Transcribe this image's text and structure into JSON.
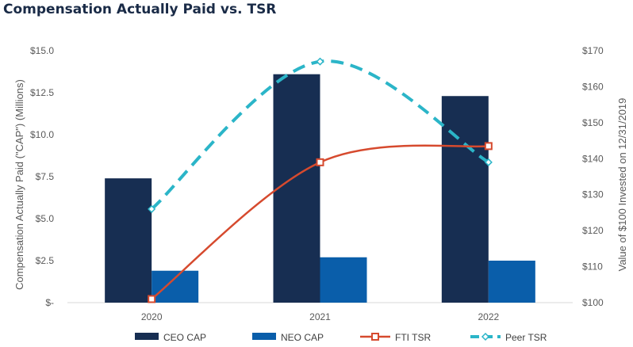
{
  "chart_data": {
    "type": "bar",
    "title": "Compensation Actually Paid vs. TSR",
    "categories": [
      "2020",
      "2021",
      "2022"
    ],
    "series": [
      {
        "name": "CEO CAP",
        "kind": "bar",
        "axis": "left",
        "color": "#172e52",
        "values": [
          7.4,
          13.6,
          12.3
        ]
      },
      {
        "name": "NEO CAP",
        "kind": "bar",
        "axis": "left",
        "color": "#0a5eaa",
        "values": [
          1.9,
          2.7,
          2.5
        ]
      },
      {
        "name": "FTI TSR",
        "kind": "line",
        "axis": "right",
        "color": "#d64a2e",
        "marker": "square",
        "values": [
          101,
          139,
          143.5
        ]
      },
      {
        "name": "Peer TSR",
        "kind": "line",
        "axis": "right",
        "color": "#2bb5c8",
        "marker": "diamond",
        "dashed": true,
        "values": [
          126,
          167,
          139
        ]
      }
    ],
    "y_left": {
      "label": "Compensation Actually Paid (\"CAP\") (Millions)",
      "ylim": [
        0,
        15
      ],
      "ticks": [
        0,
        2.5,
        5,
        7.5,
        10,
        12.5,
        15
      ],
      "tick_labels": [
        "$-",
        "$2.5",
        "$5.0",
        "$7.5",
        "$10.0",
        "$12.5",
        "$15.0"
      ]
    },
    "y_right": {
      "label": "Value of $100 Invested on 12/31/2019",
      "ylim": [
        100,
        170
      ],
      "ticks": [
        100,
        110,
        120,
        130,
        140,
        150,
        160,
        170
      ],
      "tick_labels": [
        "$100",
        "$110",
        "$120",
        "$130",
        "$140",
        "$150",
        "$160",
        "$170"
      ]
    },
    "grid": false,
    "legend_position": "bottom"
  }
}
